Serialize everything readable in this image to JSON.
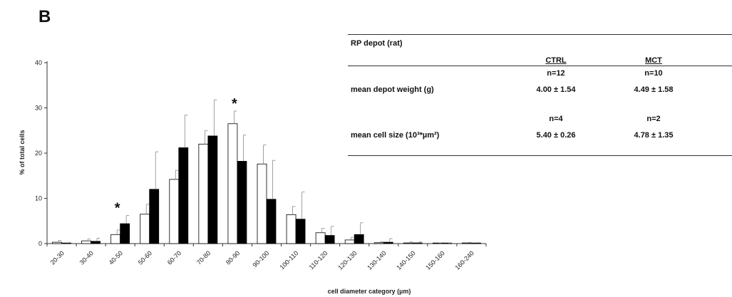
{
  "panel_label": "B",
  "chart_data": {
    "type": "bar",
    "categories": [
      "20-30",
      "30-40",
      "40-50",
      "50-60",
      "60-70",
      "70-80",
      "80-90",
      "90-100",
      "100-110",
      "110-120",
      "120-130",
      "130-140",
      "140-150",
      "150-160",
      "160-240"
    ],
    "series": [
      {
        "name": "",
        "values": [
          0.3,
          0.6,
          2.0,
          6.5,
          14.2,
          22.0,
          26.5,
          17.6,
          6.4,
          2.4,
          0.8,
          0.2,
          0.15,
          0.05,
          0.15
        ],
        "errors": [
          0.4,
          0.4,
          1.0,
          2.2,
          2.0,
          3.0,
          2.8,
          4.2,
          1.8,
          1.0,
          0.6,
          0.2,
          0.2,
          0.1,
          0.1
        ],
        "color": "#ffffff"
      },
      {
        "name": "",
        "values": [
          0.1,
          0.5,
          4.4,
          12.0,
          21.2,
          23.8,
          18.2,
          9.8,
          5.4,
          1.8,
          2.0,
          0.3,
          0.15,
          0.05,
          0.1
        ],
        "errors": [
          0.1,
          0.7,
          1.8,
          8.3,
          7.2,
          8.0,
          5.8,
          8.6,
          6.0,
          2.0,
          2.6,
          0.8,
          0.2,
          0.1,
          0.1
        ],
        "color": "#000000"
      }
    ],
    "significance_marks": [
      {
        "category": "40-50",
        "label": "*"
      },
      {
        "category": "80-90",
        "label": "*"
      }
    ],
    "xlabel": "cell diameter category (µm)",
    "ylabel": "% of total cells",
    "ylim": [
      0,
      40
    ],
    "yticks": [
      0,
      10,
      20,
      30,
      40
    ],
    "grid": false,
    "legend": "none"
  },
  "table": {
    "title": "RP depot (rat)",
    "col_headers": [
      "CTRL",
      "MCT"
    ],
    "rows": [
      {
        "n": [
          "n=12",
          "n=10"
        ],
        "label": "mean depot weight (g)",
        "values": [
          "4.00 ± 1.54",
          "4.49 ± 1.58"
        ]
      },
      {
        "n": [
          "n=4",
          "n=2"
        ],
        "label": "mean cell size (10³*µm²)",
        "values": [
          "5.40 ± 0.26",
          "4.78 ± 1.35"
        ]
      }
    ]
  }
}
